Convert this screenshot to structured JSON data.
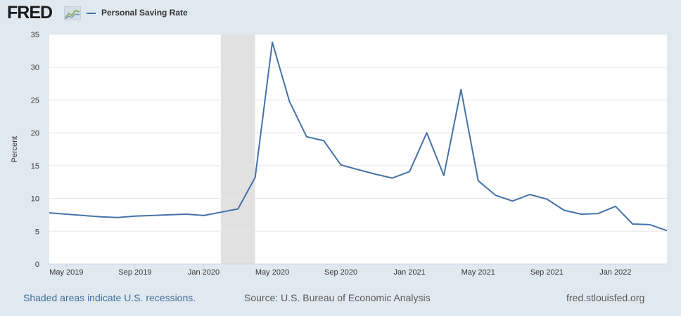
{
  "header": {
    "logo_text": "FRED",
    "series_name": "Personal Saving Rate"
  },
  "footer": {
    "recession_note": "Shaded areas indicate U.S. recessions.",
    "source": "Source: U.S. Bureau of Economic Analysis",
    "site": "fred.stlouisfed.org"
  },
  "colors": {
    "line": "#4572a7",
    "recession": "#e1e1e1",
    "background": "#e1e9f0"
  },
  "chart_data": {
    "type": "line",
    "ylabel": "Percent",
    "xlabel": "",
    "ylim": [
      0,
      35
    ],
    "yticks": [
      0,
      5,
      10,
      15,
      20,
      25,
      30,
      35
    ],
    "xlim": [
      "2019-04",
      "2022-04"
    ],
    "xticks": [
      "May 2019",
      "Sep 2019",
      "Jan 2020",
      "May 2020",
      "Sep 2020",
      "Jan 2021",
      "May 2021",
      "Sep 2021",
      "Jan 2022"
    ],
    "grid": true,
    "recession": [
      "2020-02",
      "2020-04"
    ],
    "series": [
      {
        "name": "Personal Saving Rate",
        "x": [
          "2019-04",
          "2019-05",
          "2019-06",
          "2019-07",
          "2019-08",
          "2019-09",
          "2019-10",
          "2019-11",
          "2019-12",
          "2020-01",
          "2020-02",
          "2020-03",
          "2020-04",
          "2020-05",
          "2020-06",
          "2020-07",
          "2020-08",
          "2020-09",
          "2020-10",
          "2020-11",
          "2020-12",
          "2021-01",
          "2021-02",
          "2021-03",
          "2021-04",
          "2021-05",
          "2021-06",
          "2021-07",
          "2021-08",
          "2021-09",
          "2021-10",
          "2021-11",
          "2021-12",
          "2022-01",
          "2022-02",
          "2022-03",
          "2022-04"
        ],
        "values": [
          7.8,
          7.6,
          7.4,
          7.2,
          7.1,
          7.3,
          7.4,
          7.5,
          7.6,
          7.4,
          7.9,
          8.4,
          13.2,
          33.8,
          24.8,
          19.4,
          18.8,
          15.1,
          14.4,
          13.7,
          13.1,
          14.1,
          20.0,
          13.5,
          26.6,
          12.7,
          10.5,
          9.6,
          10.6,
          9.9,
          8.2,
          7.6,
          7.7,
          8.8,
          6.1,
          6.0,
          5.1
        ]
      }
    ]
  }
}
